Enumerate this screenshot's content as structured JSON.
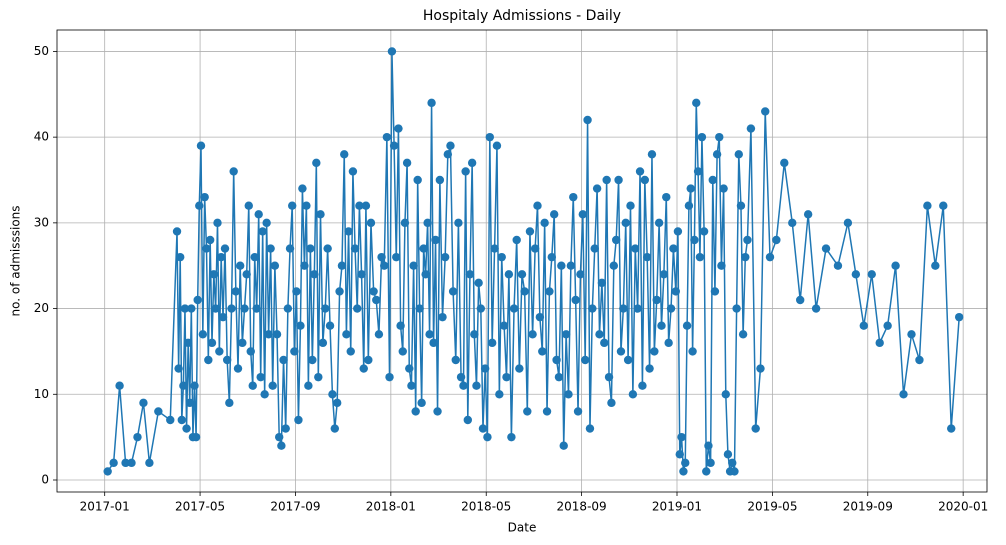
{
  "chart_data": {
    "type": "line",
    "title": "Hospitaly Admissions - Daily",
    "xlabel": "Date",
    "ylabel": "no. of admisssions",
    "color": "#1f77b4",
    "grid": true,
    "marker": "circle",
    "xlim": [
      "2016-11",
      "2020-02"
    ],
    "xticks": [
      "2017-01",
      "2017-05",
      "2017-09",
      "2018-01",
      "2018-05",
      "2018-09",
      "2019-01",
      "2019-05",
      "2019-09",
      "2020-01"
    ],
    "ylim": [
      -1.4,
      52.5
    ],
    "yticks": [
      0,
      10,
      20,
      30,
      40,
      50
    ],
    "x": [
      "2017-01",
      "2017-01",
      "2017-01",
      "2017-01",
      "2017-02",
      "2017-02",
      "2017-02",
      "2017-02",
      "2017-03",
      "2017-03",
      "2017-04",
      "2017-04",
      "2017-04",
      "2017-04",
      "2017-04",
      "2017-04",
      "2017-04",
      "2017-04",
      "2017-04",
      "2017-04",
      "2017-04",
      "2017-04",
      "2017-04",
      "2017-04",
      "2017-04",
      "2017-05",
      "2017-05",
      "2017-05",
      "2017-05",
      "2017-05",
      "2017-05",
      "2017-05",
      "2017-05",
      "2017-05",
      "2017-05",
      "2017-05",
      "2017-05",
      "2017-05",
      "2017-06",
      "2017-06",
      "2017-06",
      "2017-06",
      "2017-06",
      "2017-06",
      "2017-06",
      "2017-06",
      "2017-06",
      "2017-06",
      "2017-06",
      "2017-07",
      "2017-07",
      "2017-07",
      "2017-07",
      "2017-07",
      "2017-07",
      "2017-07",
      "2017-07",
      "2017-07",
      "2017-07",
      "2017-07",
      "2017-07",
      "2017-08",
      "2017-08",
      "2017-08",
      "2017-08",
      "2017-08",
      "2017-08",
      "2017-08",
      "2017-08",
      "2017-08",
      "2017-08",
      "2017-08",
      "2017-09",
      "2017-09",
      "2017-09",
      "2017-09",
      "2017-09",
      "2017-09",
      "2017-09",
      "2017-09",
      "2017-09",
      "2017-09",
      "2017-09",
      "2017-09",
      "2017-10",
      "2017-10",
      "2017-10",
      "2017-10",
      "2017-10",
      "2017-10",
      "2017-10",
      "2017-10",
      "2017-10",
      "2017-10",
      "2017-11",
      "2017-11",
      "2017-11",
      "2017-11",
      "2017-11",
      "2017-11",
      "2017-11",
      "2017-11",
      "2017-11",
      "2017-11",
      "2017-11",
      "2017-12",
      "2017-12",
      "2017-12",
      "2017-12",
      "2017-12",
      "2017-12",
      "2017-12",
      "2017-12",
      "2017-12",
      "2018-01",
      "2018-01",
      "2018-01",
      "2018-01",
      "2018-01",
      "2018-01",
      "2018-01",
      "2018-01",
      "2018-01",
      "2018-01",
      "2018-01",
      "2018-02",
      "2018-02",
      "2018-02",
      "2018-02",
      "2018-02",
      "2018-02",
      "2018-02",
      "2018-02",
      "2018-02",
      "2018-02",
      "2018-02",
      "2018-02",
      "2018-03",
      "2018-03",
      "2018-03",
      "2018-03",
      "2018-03",
      "2018-03",
      "2018-03",
      "2018-03",
      "2018-03",
      "2018-04",
      "2018-04",
      "2018-04",
      "2018-04",
      "2018-04",
      "2018-04",
      "2018-04",
      "2018-04",
      "2018-04",
      "2018-04",
      "2018-04",
      "2018-05",
      "2018-05",
      "2018-05",
      "2018-05",
      "2018-05",
      "2018-05",
      "2018-05",
      "2018-05",
      "2018-05",
      "2018-05",
      "2018-06",
      "2018-06",
      "2018-06",
      "2018-06",
      "2018-06",
      "2018-06",
      "2018-06",
      "2018-06",
      "2018-06",
      "2018-07",
      "2018-07",
      "2018-07",
      "2018-07",
      "2018-07",
      "2018-07",
      "2018-07",
      "2018-07",
      "2018-07",
      "2018-07",
      "2018-08",
      "2018-08",
      "2018-08",
      "2018-08",
      "2018-08",
      "2018-08",
      "2018-08",
      "2018-08",
      "2018-08",
      "2018-08",
      "2018-09",
      "2018-09",
      "2018-09",
      "2018-09",
      "2018-09",
      "2018-09",
      "2018-09",
      "2018-09",
      "2018-09",
      "2018-09",
      "2018-10",
      "2018-10",
      "2018-10",
      "2018-10",
      "2018-10",
      "2018-10",
      "2018-10",
      "2018-10",
      "2018-10",
      "2018-10",
      "2018-11",
      "2018-11",
      "2018-11",
      "2018-11",
      "2018-11",
      "2018-11",
      "2018-11",
      "2018-11",
      "2018-11",
      "2018-11",
      "2018-12",
      "2018-12",
      "2018-12",
      "2018-12",
      "2018-12",
      "2018-12",
      "2018-12",
      "2018-12",
      "2018-12",
      "2018-12",
      "2019-01",
      "2019-01",
      "2019-01",
      "2019-01",
      "2019-01",
      "2019-01",
      "2019-01",
      "2019-01",
      "2019-01",
      "2019-01",
      "2019-01",
      "2019-01",
      "2019-01",
      "2019-02",
      "2019-02",
      "2019-02",
      "2019-02",
      "2019-02",
      "2019-02",
      "2019-02",
      "2019-02",
      "2019-02",
      "2019-02",
      "2019-02",
      "2019-03",
      "2019-03",
      "2019-03",
      "2019-03",
      "2019-03",
      "2019-03",
      "2019-03",
      "2019-03",
      "2019-03",
      "2019-03",
      "2019-03",
      "2019-04",
      "2019-04",
      "2019-04",
      "2019-04",
      "2019-04",
      "2019-05",
      "2019-05",
      "2019-05",
      "2019-06",
      "2019-06",
      "2019-06",
      "2019-07",
      "2019-07",
      "2019-08",
      "2019-08",
      "2019-08",
      "2019-09",
      "2019-09",
      "2019-09",
      "2019-10",
      "2019-10",
      "2019-10",
      "2019-11",
      "2019-11",
      "2019-11",
      "2019-12",
      "2019-12",
      "2019-12"
    ],
    "values": [
      1,
      2,
      11,
      2,
      2,
      5,
      9,
      2,
      8,
      7,
      29,
      13,
      26,
      7,
      11,
      20,
      6,
      16,
      9,
      20,
      5,
      11,
      5,
      21,
      32,
      39,
      17,
      33,
      27,
      14,
      28,
      16,
      24,
      20,
      30,
      15,
      26,
      19,
      27,
      14,
      9,
      20,
      36,
      22,
      13,
      25,
      16,
      20,
      24,
      32,
      15,
      11,
      26,
      20,
      31,
      12,
      29,
      10,
      30,
      17,
      27,
      11,
      25,
      17,
      5,
      4,
      14,
      6,
      20,
      27,
      32,
      15,
      22,
      7,
      18,
      34,
      25,
      32,
      11,
      27,
      14,
      24,
      37,
      12,
      31,
      16,
      20,
      27,
      18,
      10,
      6,
      9,
      22,
      25,
      38,
      17,
      29,
      15,
      36,
      27,
      20,
      32,
      24,
      13,
      32,
      14,
      30,
      22,
      21,
      17,
      26,
      25,
      40,
      12,
      50,
      39,
      26,
      41,
      18,
      15,
      30,
      37,
      13,
      11,
      25,
      8,
      35,
      20,
      9,
      27,
      24,
      30,
      17,
      44,
      16,
      28,
      8,
      35,
      19,
      26,
      38,
      39,
      22,
      14,
      30,
      12,
      11,
      36,
      7,
      24,
      37,
      17,
      11,
      23,
      20,
      6,
      13,
      5,
      40,
      16,
      27,
      39,
      10,
      26,
      18,
      12,
      24,
      5,
      20,
      28,
      13,
      24,
      22,
      8,
      29,
      17,
      27,
      32,
      19,
      15,
      30,
      8,
      22,
      26,
      31,
      14,
      12,
      25,
      4,
      17,
      10,
      25,
      33,
      21,
      8,
      24,
      31,
      14,
      42,
      6,
      20,
      27,
      34,
      17,
      23,
      16,
      35,
      12,
      9,
      25,
      28,
      35,
      15,
      20,
      30,
      14,
      32,
      10,
      27,
      20,
      36,
      11,
      35,
      26,
      13,
      38,
      15,
      21,
      30,
      18,
      24,
      33,
      16,
      20,
      27,
      22,
      29,
      3,
      5,
      1,
      2,
      18,
      32,
      34,
      15,
      28,
      44,
      36,
      26,
      40,
      29,
      1,
      4,
      2,
      35,
      22,
      38,
      40,
      25,
      34,
      10,
      3,
      1,
      2,
      1,
      20,
      38,
      32,
      17,
      26,
      28,
      41,
      6,
      13,
      43,
      26,
      28,
      37,
      30,
      21,
      31,
      20,
      27,
      25,
      30,
      24,
      18,
      24,
      16,
      18,
      25,
      10,
      17,
      14,
      32,
      25,
      32,
      6,
      19
    ]
  }
}
